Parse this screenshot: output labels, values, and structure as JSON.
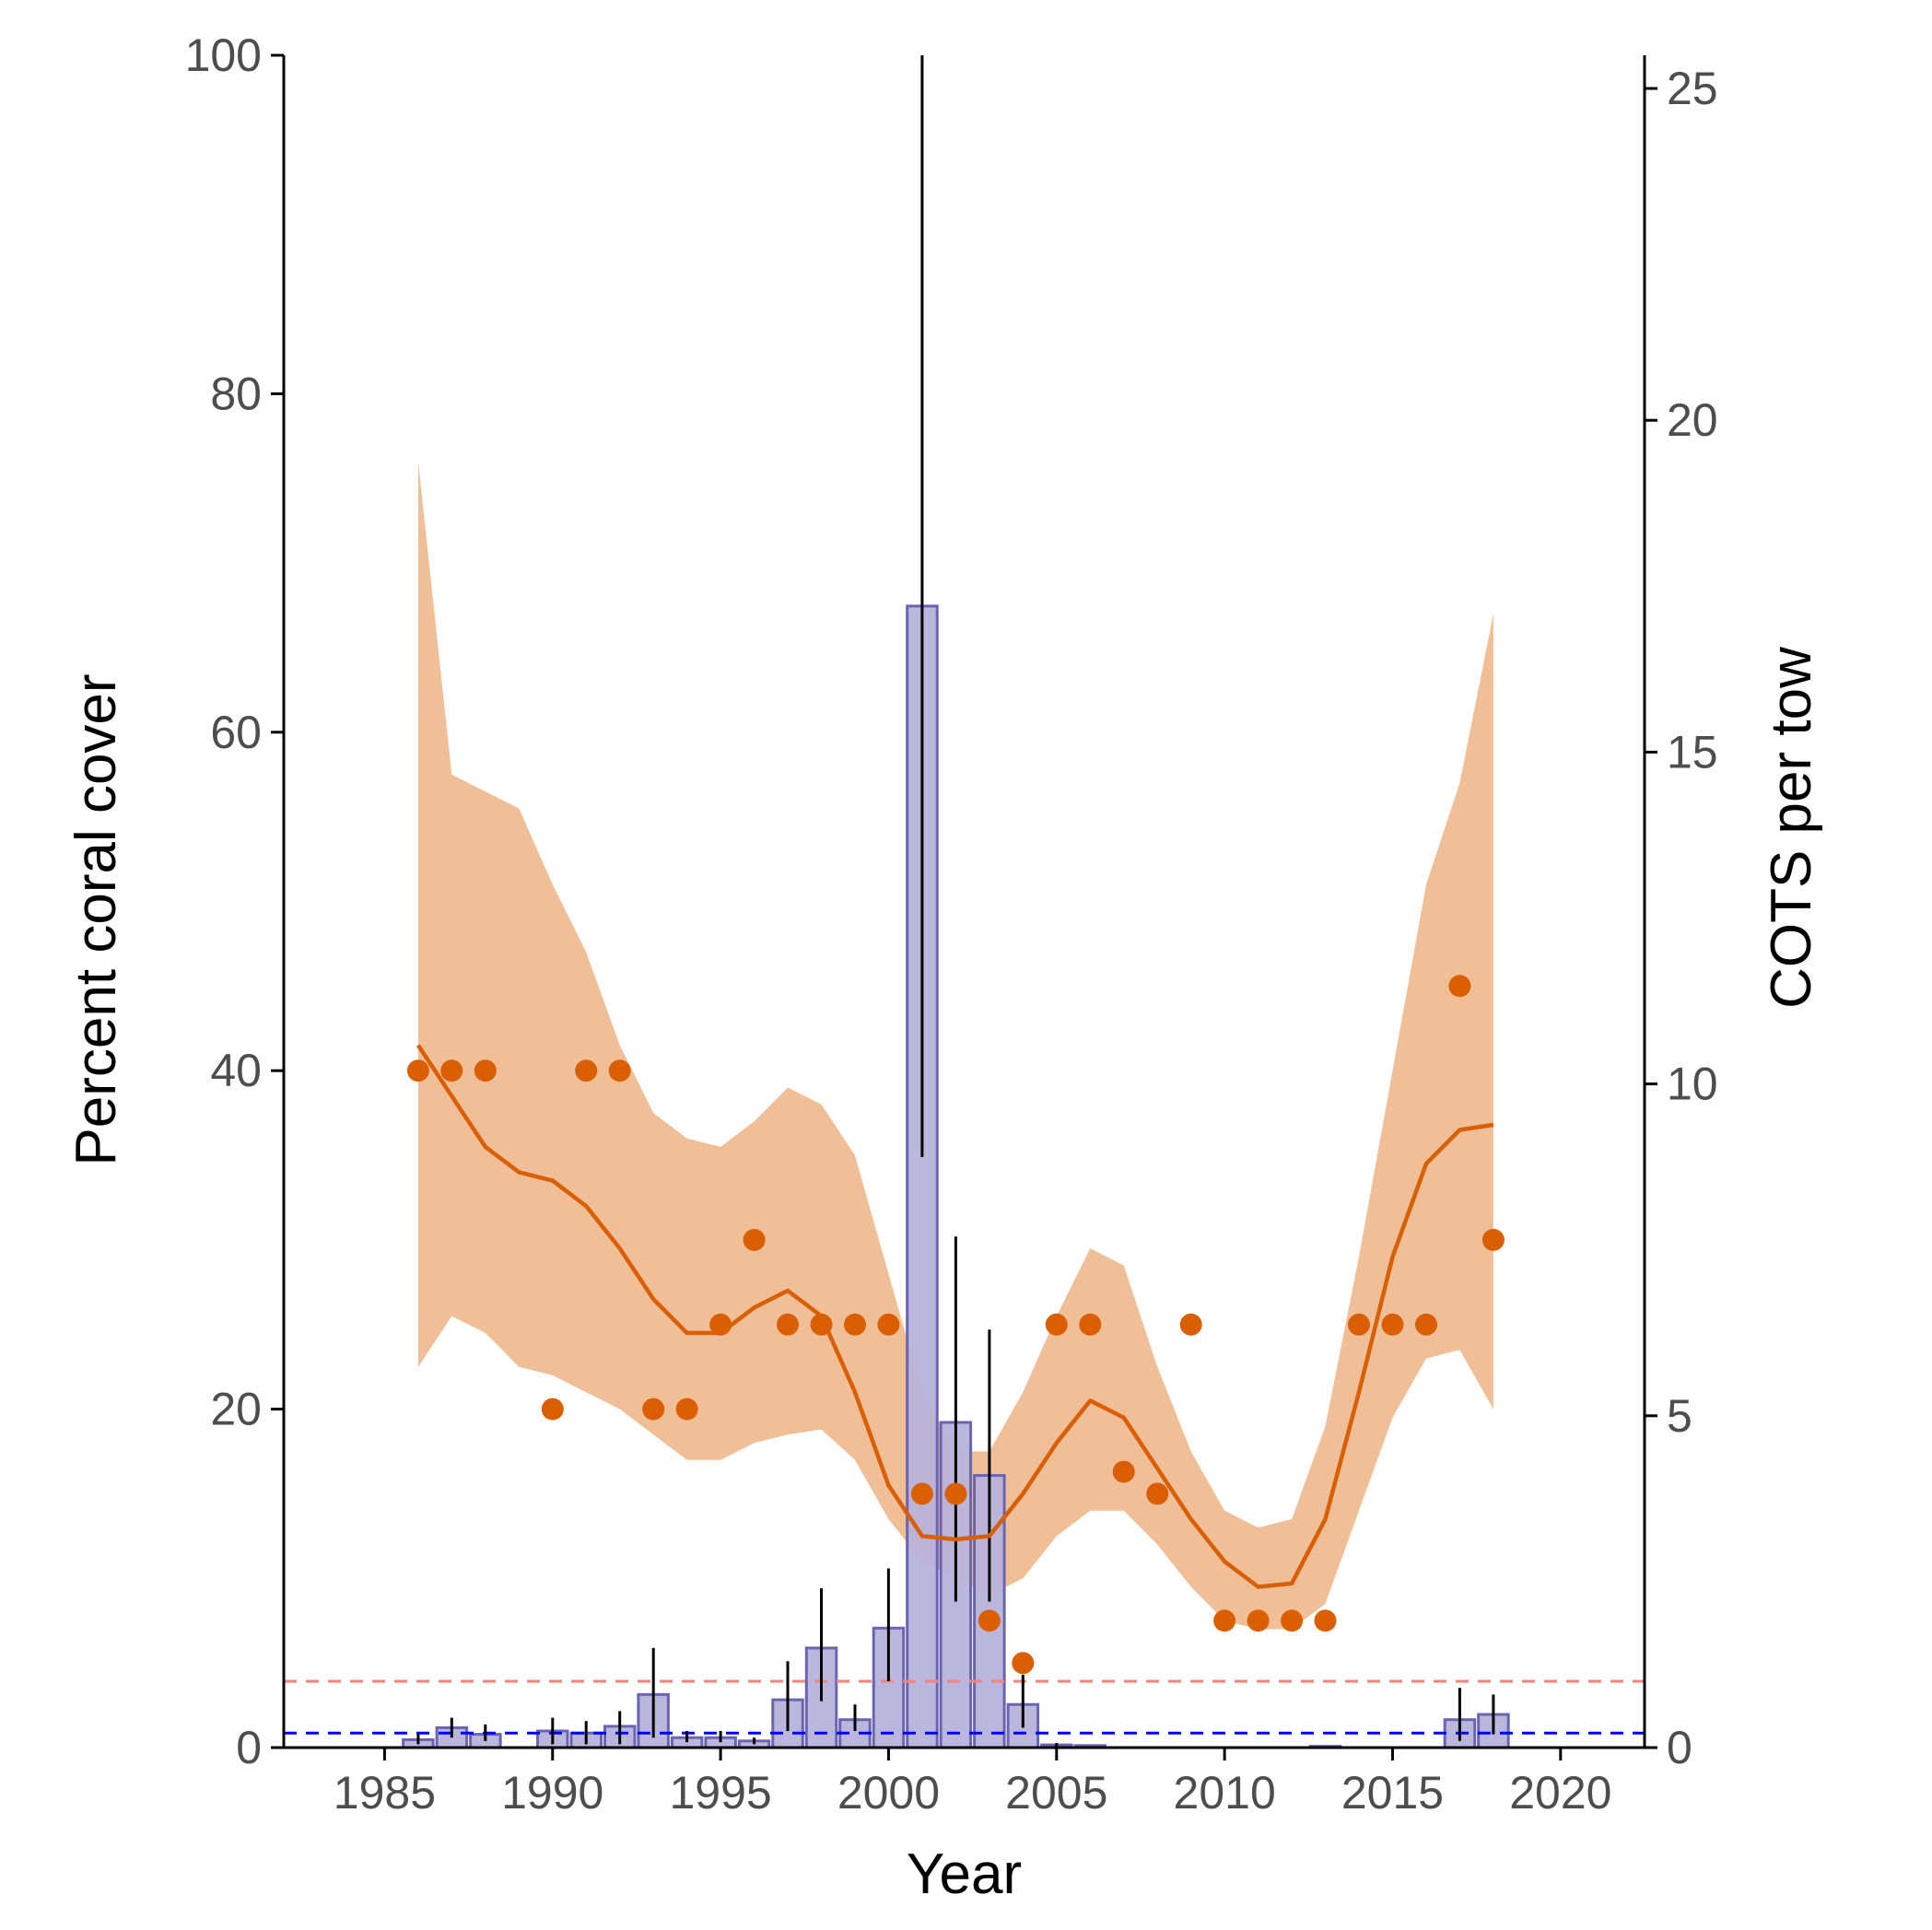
{
  "chart_data": {
    "type": "bar",
    "title": "",
    "xlabel": "Year",
    "ylabel": "Percent coral cover",
    "y2label": "COTS per tow",
    "xlim": [
      1982,
      2022.5
    ],
    "ylim": [
      0,
      100
    ],
    "y2lim": [
      0,
      25.5
    ],
    "x_ticks": [
      1985,
      1990,
      1995,
      2000,
      2005,
      2010,
      2015,
      2020
    ],
    "y_ticks": [
      0,
      20,
      40,
      60,
      80,
      100
    ],
    "y2_ticks": [
      0,
      5,
      10,
      15,
      20,
      25
    ],
    "grid": false,
    "legend": "none",
    "colors": {
      "points": "#d95f02",
      "smooth_line": "#d95f02",
      "ribbon": "#f1bf97",
      "bar_fill": "#b7b3da",
      "bar_stroke": "#6b64b0",
      "error_bar": "#000000",
      "upper_threshold": "#f4837a",
      "lower_threshold": "#0000ff"
    },
    "coral_points": {
      "axis": "left",
      "x": [
        1986,
        1987,
        1988,
        1990,
        1991,
        1992,
        1993,
        1994,
        1995,
        1996,
        1997,
        1998,
        1999,
        2000,
        2001,
        2002,
        2003,
        2004,
        2005,
        2006,
        2007,
        2008,
        2009,
        2010,
        2011,
        2012,
        2013,
        2014,
        2015,
        2016,
        2017,
        2018
      ],
      "y": [
        40,
        40,
        40,
        20,
        40,
        40,
        20,
        20,
        25,
        30,
        25,
        25,
        25,
        25,
        15,
        15,
        7.5,
        5,
        25,
        25,
        16.3,
        15,
        25,
        7.5,
        7.5,
        7.5,
        7.5,
        25,
        25,
        25,
        45,
        30
      ]
    },
    "coral_smooth": {
      "axis": "left",
      "x": [
        1986,
        1987,
        1988,
        1989,
        1990,
        1991,
        1992,
        1993,
        1994,
        1995,
        1996,
        1997,
        1998,
        1999,
        2000,
        2001,
        2002,
        2003,
        2004,
        2005,
        2006,
        2007,
        2008,
        2009,
        2010,
        2011,
        2012,
        2013,
        2014,
        2015,
        2016,
        2017,
        2018
      ],
      "y": [
        41.5,
        38.5,
        35.5,
        34,
        33.5,
        32,
        29.5,
        26.5,
        24.5,
        24.5,
        26,
        27,
        25.5,
        21,
        15.5,
        12.5,
        12.3,
        12.5,
        15,
        18,
        20.5,
        19.5,
        16.5,
        13.5,
        11,
        9.5,
        9.7,
        13.5,
        21,
        29,
        34.5,
        36.5,
        36.8
      ],
      "lower": [
        22.5,
        25.5,
        24.5,
        22.5,
        22,
        21,
        20,
        18.5,
        17,
        17,
        18,
        18.5,
        18.8,
        17,
        13.5,
        11,
        10,
        9,
        10,
        12.5,
        14,
        14,
        12,
        9.5,
        7.5,
        7,
        7,
        8.5,
        14,
        19.5,
        23,
        23.5,
        20
      ],
      "upper": [
        76,
        57.5,
        56.5,
        55.5,
        51,
        47,
        41.5,
        37.5,
        36,
        35.5,
        37,
        39,
        38,
        35,
        28,
        21,
        17.5,
        17.5,
        21,
        25.5,
        29.5,
        28.5,
        22.5,
        17.5,
        14,
        13,
        13.5,
        19,
        29,
        40,
        51,
        57,
        67
      ]
    },
    "cots_bars": {
      "axis": "right",
      "x": [
        1986,
        1987,
        1988,
        1990,
        1991,
        1992,
        1993,
        1994,
        1995,
        1996,
        1997,
        1998,
        1999,
        2000,
        2001,
        2002,
        2003,
        2004,
        2005,
        2006,
        2013,
        2017,
        2018
      ],
      "values": [
        0.12,
        0.3,
        0.2,
        0.25,
        0.22,
        0.32,
        0.8,
        0.15,
        0.15,
        0.1,
        0.72,
        1.5,
        0.42,
        1.8,
        17.2,
        4.9,
        4.1,
        0.65,
        0.04,
        0.03,
        0.02,
        0.42,
        0.5
      ],
      "err_low": [
        0.05,
        0.15,
        0.1,
        0.05,
        0.05,
        0.05,
        0.15,
        0.08,
        0.08,
        0.05,
        0.25,
        0.7,
        0.25,
        1.0,
        8.9,
        2.2,
        2.2,
        0.3,
        0.02,
        0.02,
        0.01,
        0.1,
        0.2
      ],
      "err_high": [
        0.2,
        0.45,
        0.35,
        0.45,
        0.4,
        0.55,
        1.5,
        0.25,
        0.25,
        0.15,
        1.3,
        2.4,
        0.65,
        2.7,
        25.5,
        7.7,
        6.3,
        1.1,
        0.07,
        0.05,
        0.03,
        0.9,
        0.8
      ]
    },
    "thresholds": [
      {
        "axis": "right",
        "value": 1.0,
        "color": "#f4837a"
      },
      {
        "axis": "right",
        "value": 0.22,
        "color": "#0000ff"
      }
    ]
  }
}
